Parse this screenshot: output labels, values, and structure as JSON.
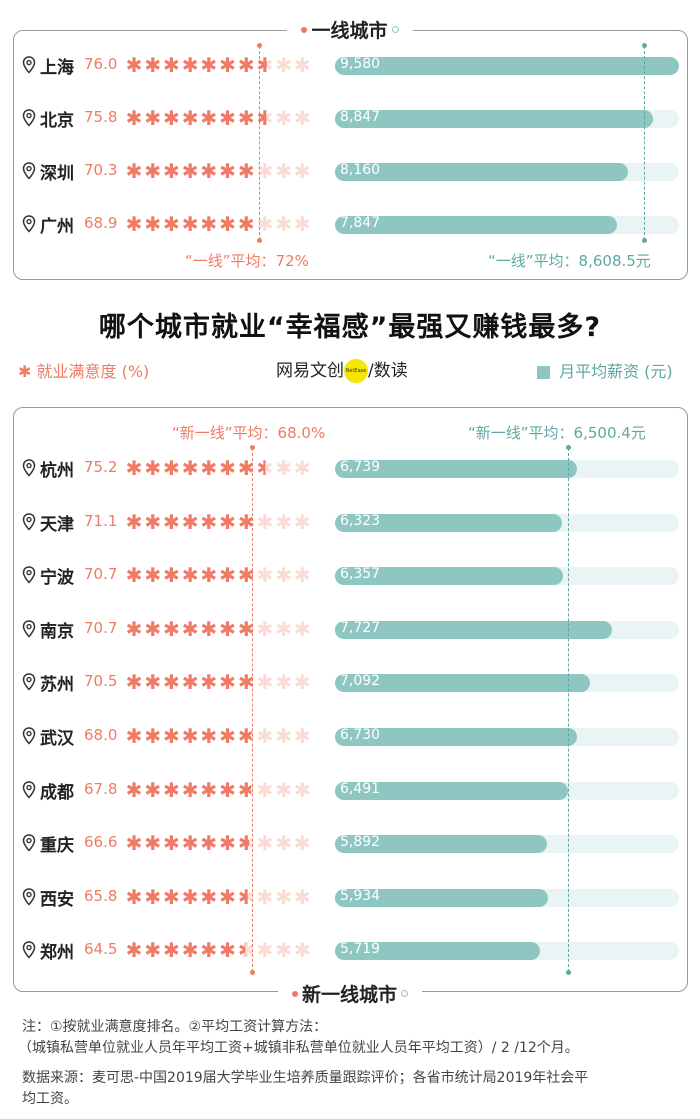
{
  "headline": "哪个城市就业“幸福感”最强又赚钱最多?",
  "legend": {
    "satisfaction": "就业满意度 (%)",
    "salary": "月平均薪资 (元)",
    "brand": "网易文创",
    "brand_badge": "NetEase",
    "brand_sub": "/数读"
  },
  "colors": {
    "satisfaction": "#f07a64",
    "salary": "#8ec6c2",
    "salary_text": "#5fa8a2",
    "track": "#eaf4f4"
  },
  "chart_data": [
    {
      "type": "bar",
      "title": "一线城市",
      "categories": [
        "上海",
        "北京",
        "深圳",
        "广州"
      ],
      "series": [
        {
          "name": "就业满意度 (%)",
          "values": [
            76.0,
            75.8,
            70.3,
            68.9
          ]
        },
        {
          "name": "月平均薪资 (元)",
          "values": [
            9580,
            8847,
            8160,
            7847
          ]
        }
      ],
      "satisfaction_labels": [
        "76.0",
        "75.8",
        "70.3",
        "68.9"
      ],
      "salary_labels": [
        "9,580",
        "8,847",
        "8,160",
        "7,847"
      ],
      "satisfaction_avg": 72,
      "salary_avg": 8608.5,
      "satisfaction_avg_label": "“一线”平均：72%",
      "salary_avg_label": "“一线”平均：8,608.5元",
      "stars_total": 10,
      "salary_max": 9580
    },
    {
      "type": "bar",
      "title": "新一线城市",
      "categories": [
        "杭州",
        "天津",
        "宁波",
        "南京",
        "苏州",
        "武汉",
        "成都",
        "重庆",
        "西安",
        "郑州"
      ],
      "series": [
        {
          "name": "就业满意度 (%)",
          "values": [
            75.2,
            71.1,
            70.7,
            70.7,
            70.5,
            68.0,
            67.8,
            66.6,
            65.8,
            64.5
          ]
        },
        {
          "name": "月平均薪资 (元)",
          "values": [
            6739,
            6323,
            6357,
            7727,
            7092,
            6730,
            6491,
            5892,
            5934,
            5719
          ]
        }
      ],
      "satisfaction_labels": [
        "75.2",
        "71.1",
        "70.7",
        "70.7",
        "70.5",
        "68.0",
        "67.8",
        "66.6",
        "65.8",
        "64.5"
      ],
      "salary_labels": [
        "6,739",
        "6,323",
        "6,357",
        "7,727",
        "7,092",
        "6,730",
        "6,491",
        "5,892",
        "5,934",
        "5,719"
      ],
      "satisfaction_avg": 68.0,
      "salary_avg": 6500.4,
      "satisfaction_avg_label": "“新一线”平均：68.0%",
      "salary_avg_label": "“新一线”平均：6,500.4元",
      "stars_total": 10,
      "salary_max": 9580
    }
  ],
  "notes": {
    "line1": "注：①按就业满意度排名。②平均工资计算方法：",
    "line2": "（城镇私营单位就业人员年平均工资+城镇非私营单位就业人员年平均工资）/ 2 /12个月。",
    "source1": "数据来源：麦可思-中国2019届大学毕业生培养质量跟踪评价；各省市统计局2019年社会平",
    "source2": "均工资。"
  }
}
